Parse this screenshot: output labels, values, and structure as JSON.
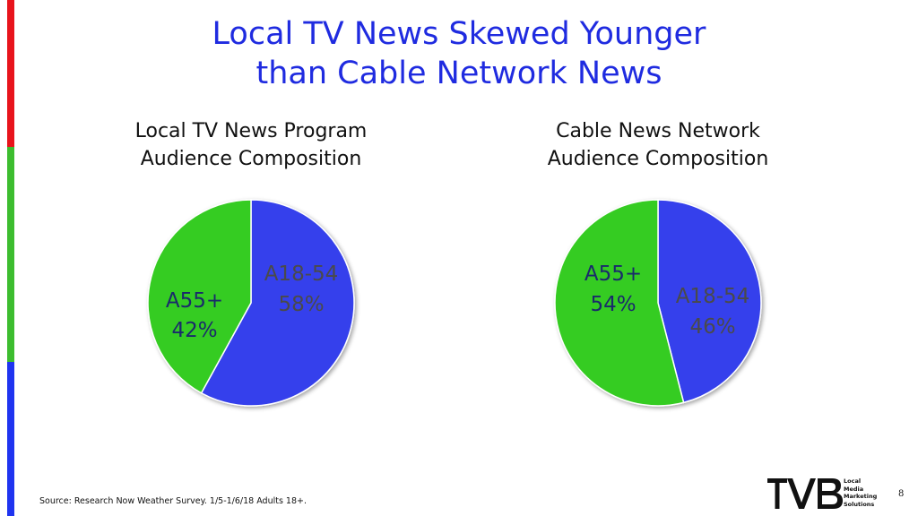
{
  "title_line1": "Local TV News Skewed Younger",
  "title_line2": "than Cable Network News",
  "chart_data": [
    {
      "type": "pie",
      "title_line1": "Local TV News Program",
      "title_line2": "Audience Composition",
      "categories": [
        "A18-54",
        "A55+"
      ],
      "values": [
        58,
        42
      ],
      "colors": [
        "#3440ec",
        "#36cc21"
      ],
      "labels": [
        {
          "name": "A18-54",
          "pct": "58%"
        },
        {
          "name": "A55+",
          "pct": "42%"
        }
      ]
    },
    {
      "type": "pie",
      "title_line1": "Cable News Network",
      "title_line2": "Audience Composition",
      "categories": [
        "A18-54",
        "A55+"
      ],
      "values": [
        46,
        54
      ],
      "colors": [
        "#3440ec",
        "#36cc21"
      ],
      "labels": [
        {
          "name": "A18-54",
          "pct": "46%"
        },
        {
          "name": "A55+",
          "pct": "54%"
        }
      ]
    }
  ],
  "source": "Source: Research Now Weather Survey. 1/5-1/6/18 Adults 18+.",
  "page_number": "8",
  "logo": {
    "text": "TVB",
    "tagline_line1": "Local",
    "tagline_line2": "Media",
    "tagline_line3": "Marketing",
    "tagline_line4": "Solutions"
  }
}
